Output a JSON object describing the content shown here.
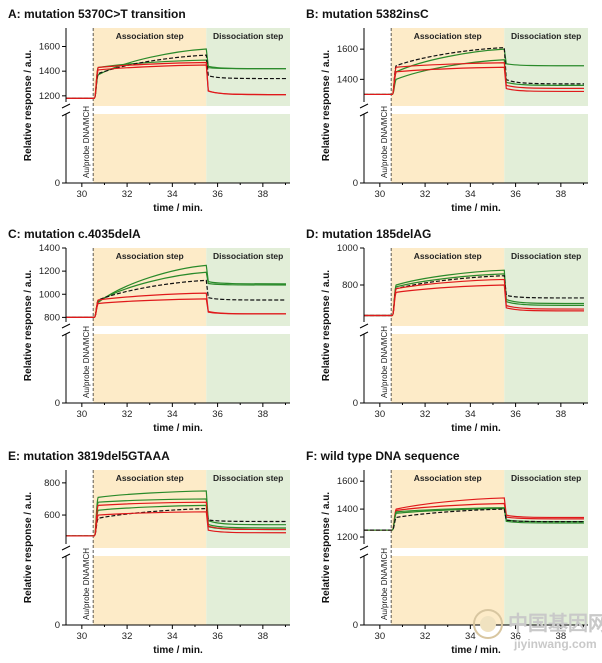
{
  "figure": {
    "x_axis_label": "time / min.",
    "y_axis_label": "Relative response / a.u.",
    "association_label": "Association step",
    "dissociation_label": "Dissociation step",
    "injection_label": "Au/probe DNA/MCH",
    "x_ticks": [
      "30",
      "32",
      "34",
      "36",
      "38"
    ],
    "colors": {
      "association_fill": "#fdebc8",
      "dissociation_fill": "#e2eed8",
      "red_series": "#e0191b",
      "green_series": "#2a8a2a",
      "black_series": "#111111"
    }
  },
  "watermark": {
    "chinese": "中国基因网",
    "latin": "jiyinwang.com"
  },
  "chart_data": [
    {
      "type": "line",
      "title": "A: mutation 5370C>T transition",
      "xlabel": "time / min.",
      "ylabel": "Relative response / a.u.",
      "xlim": [
        29.3,
        39.2
      ],
      "ylim_upper": [
        1150,
        1750
      ],
      "y_lower_tick": "0",
      "y_ticks": [
        "1200",
        "1400",
        "1600"
      ],
      "association_start": 30.5,
      "dissociation_start": 35.5,
      "baseline": 1180,
      "series": [
        {
          "color": "green",
          "plateau": 1580,
          "initial_jump": 1370,
          "dissociation_level": 1420
        },
        {
          "color": "green",
          "plateau": 1490,
          "initial_jump": 1430,
          "dissociation_level": 1420
        },
        {
          "color": "black",
          "style": "dashed",
          "plateau": 1530,
          "initial_jump": 1380,
          "dissociation_level": 1340
        },
        {
          "color": "red",
          "plateau": 1470,
          "initial_jump": 1430,
          "dissociation_level": 1210
        },
        {
          "color": "red",
          "plateau": 1450,
          "initial_jump": 1410,
          "dissociation_level": 1210
        }
      ]
    },
    {
      "type": "line",
      "title": "B: mutation 5382insC",
      "xlabel": "time / min.",
      "ylabel": "Relative response / a.u.",
      "xlim": [
        29.3,
        39.2
      ],
      "ylim_upper": [
        1250,
        1740
      ],
      "y_lower_tick": "0",
      "y_ticks": [
        "1400",
        "1600"
      ],
      "association_start": 30.5,
      "dissociation_start": 35.5,
      "baseline": 1300,
      "series": [
        {
          "color": "green",
          "plateau": 1600,
          "initial_jump": 1450,
          "dissociation_level": 1490
        },
        {
          "color": "black",
          "style": "dashed",
          "plateau": 1610,
          "initial_jump": 1490,
          "dissociation_level": 1370
        },
        {
          "color": "green",
          "plateau": 1530,
          "initial_jump": 1400,
          "dissociation_level": 1360
        },
        {
          "color": "red",
          "plateau": 1510,
          "initial_jump": 1480,
          "dissociation_level": 1340
        },
        {
          "color": "red",
          "plateau": 1480,
          "initial_jump": 1450,
          "dissociation_level": 1320
        }
      ]
    },
    {
      "type": "line",
      "title": "C: mutation c.4035delA",
      "xlabel": "time / min.",
      "ylabel": "Relative response / a.u.",
      "xlim": [
        29.3,
        39.2
      ],
      "ylim_upper": [
        760,
        1400
      ],
      "y_lower_tick": "0",
      "y_ticks": [
        "800",
        "1000",
        "1200",
        "1400"
      ],
      "association_start": 30.5,
      "dissociation_start": 35.5,
      "baseline": 800,
      "series": [
        {
          "color": "green",
          "plateau": 1250,
          "initial_jump": 930,
          "dissociation_level": 1090
        },
        {
          "color": "green",
          "plateau": 1190,
          "initial_jump": 940,
          "dissociation_level": 1080
        },
        {
          "color": "black",
          "style": "dashed",
          "plateau": 1120,
          "initial_jump": 950,
          "dissociation_level": 950
        },
        {
          "color": "red",
          "plateau": 1010,
          "initial_jump": 950,
          "dissociation_level": 830
        },
        {
          "color": "red",
          "plateau": 960,
          "initial_jump": 920,
          "dissociation_level": 830
        }
      ]
    },
    {
      "type": "line",
      "title": "D: mutation 185delAG",
      "xlabel": "time / min.",
      "ylabel": "Relative response / a.u.",
      "xlim": [
        29.3,
        39.2
      ],
      "ylim_upper": [
        600,
        1000
      ],
      "y_lower_tick": "0",
      "y_ticks": [
        "800",
        "1000"
      ],
      "association_start": 30.5,
      "dissociation_start": 35.5,
      "baseline": 635,
      "series": [
        {
          "color": "green",
          "plateau": 880,
          "initial_jump": 800,
          "dissociation_level": 700
        },
        {
          "color": "green",
          "plateau": 860,
          "initial_jump": 790,
          "dissociation_level": 690
        },
        {
          "color": "black",
          "style": "dashed",
          "plateau": 850,
          "initial_jump": 780,
          "dissociation_level": 730
        },
        {
          "color": "red",
          "plateau": 830,
          "initial_jump": 780,
          "dissociation_level": 670
        },
        {
          "color": "red",
          "plateau": 800,
          "initial_jump": 760,
          "dissociation_level": 660
        }
      ]
    },
    {
      "type": "line",
      "title": "E: mutation 3819del5GTAAA",
      "xlabel": "time / min.",
      "ylabel": "Relative response / a.u.",
      "xlim": [
        29.3,
        39.2
      ],
      "ylim_upper": [
        420,
        880
      ],
      "y_lower_tick": "0",
      "y_ticks": [
        "600",
        "800"
      ],
      "association_start": 30.5,
      "dissociation_start": 35.5,
      "baseline": 470,
      "series": [
        {
          "color": "green",
          "plateau": 750,
          "initial_jump": 710,
          "dissociation_level": 540
        },
        {
          "color": "green",
          "plateau": 700,
          "initial_jump": 680,
          "dissociation_level": 520
        },
        {
          "color": "green",
          "plateau": 660,
          "initial_jump": 630,
          "dissociation_level": 510
        },
        {
          "color": "black",
          "style": "dashed",
          "plateau": 640,
          "initial_jump": 580,
          "dissociation_level": 560
        },
        {
          "color": "red",
          "plateau": 680,
          "initial_jump": 660,
          "dissociation_level": 510
        },
        {
          "color": "red",
          "plateau": 620,
          "initial_jump": 600,
          "dissociation_level": 490
        }
      ]
    },
    {
      "type": "line",
      "title": "F: wild type DNA sequence",
      "xlabel": "time / min.",
      "ylabel": "Relative response / a.u.",
      "xlim": [
        29.3,
        39.2
      ],
      "ylim_upper": [
        1150,
        1680
      ],
      "y_lower_tick": "0",
      "y_ticks": [
        "1200",
        "1400",
        "1600"
      ],
      "association_start": 30.5,
      "dissociation_start": 35.5,
      "baseline": 1250,
      "series": [
        {
          "color": "red",
          "plateau": 1480,
          "initial_jump": 1400,
          "dissociation_level": 1340
        },
        {
          "color": "red",
          "plateau": 1440,
          "initial_jump": 1390,
          "dissociation_level": 1330
        },
        {
          "color": "green",
          "plateau": 1410,
          "initial_jump": 1380,
          "dissociation_level": 1310
        },
        {
          "color": "green",
          "plateau": 1405,
          "initial_jump": 1370,
          "dissociation_level": 1300
        },
        {
          "color": "black",
          "style": "dashed",
          "plateau": 1400,
          "initial_jump": 1340,
          "dissociation_level": 1310
        }
      ]
    }
  ]
}
